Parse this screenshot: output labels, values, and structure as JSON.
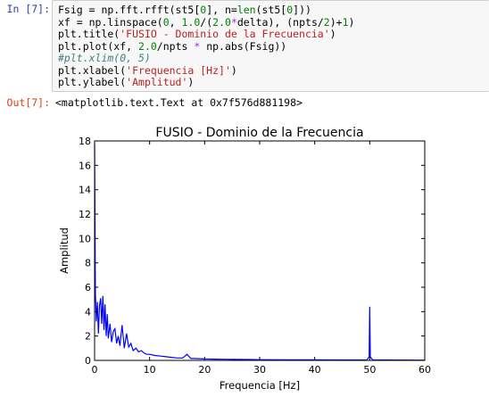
{
  "cell": {
    "in_prompt": "In [7]:",
    "out_prompt": "Out[7]:",
    "code_lines": [
      [
        {
          "t": "Fsig = np.fft.rfft(st5[",
          "c": ""
        },
        {
          "t": "0",
          "c": "nu"
        },
        {
          "t": "], n=",
          "c": ""
        },
        {
          "t": "len",
          "c": "kw"
        },
        {
          "t": "(st5[",
          "c": ""
        },
        {
          "t": "0",
          "c": "nu"
        },
        {
          "t": "]))",
          "c": ""
        }
      ],
      [
        {
          "t": "xf = np.linspace(",
          "c": ""
        },
        {
          "t": "0",
          "c": "nu"
        },
        {
          "t": ", ",
          "c": ""
        },
        {
          "t": "1.0",
          "c": "nu"
        },
        {
          "t": "/(",
          "c": ""
        },
        {
          "t": "2.0",
          "c": "nu"
        },
        {
          "t": "*",
          "c": "op"
        },
        {
          "t": "delta), (npts/",
          "c": ""
        },
        {
          "t": "2",
          "c": "nu"
        },
        {
          "t": ")+",
          "c": ""
        },
        {
          "t": "1",
          "c": "nu"
        },
        {
          "t": ")",
          "c": ""
        }
      ],
      [
        {
          "t": "plt.title(",
          "c": ""
        },
        {
          "t": "'FUSIO - Dominio de la Frecuencia'",
          "c": "st"
        },
        {
          "t": ")",
          "c": ""
        }
      ],
      [
        {
          "t": "plt.plot(xf, ",
          "c": ""
        },
        {
          "t": "2.0",
          "c": "nu"
        },
        {
          "t": "/npts ",
          "c": ""
        },
        {
          "t": "*",
          "c": "op"
        },
        {
          "t": " np.abs(Fsig))",
          "c": ""
        }
      ],
      [
        {
          "t": "#plt.xlim(0, 5)",
          "c": "cm"
        }
      ],
      [
        {
          "t": "plt.xlabel(",
          "c": ""
        },
        {
          "t": "'Frequencia [Hz]'",
          "c": "st"
        },
        {
          "t": ")",
          "c": ""
        }
      ],
      [
        {
          "t": "plt.ylabel(",
          "c": ""
        },
        {
          "t": "'Amplitud'",
          "c": "st"
        },
        {
          "t": ")",
          "c": ""
        }
      ]
    ],
    "output_text": "<matplotlib.text.Text at 0x7f576d881198>"
  },
  "chart_data": {
    "type": "line",
    "title": "FUSIO - Dominio de la Frecuencia",
    "xlabel": "Frequencia [Hz]",
    "ylabel": "Amplitud",
    "xlim": [
      0,
      60
    ],
    "ylim": [
      0,
      18
    ],
    "xticks": [
      0,
      10,
      20,
      30,
      40,
      50,
      60
    ],
    "yticks": [
      0,
      2,
      4,
      6,
      8,
      10,
      12,
      14,
      16,
      18
    ],
    "grid": false,
    "line_color": "#0000ff",
    "series": [
      {
        "x": [
          0,
          0.15,
          0.3,
          0.5,
          0.7,
          0.9,
          1.1,
          1.3,
          1.5,
          1.7,
          1.9,
          2.1,
          2.3,
          2.5,
          2.8,
          3.1,
          3.4,
          3.7,
          4.0,
          4.3,
          4.6,
          5.0,
          5.4,
          5.8,
          6.2,
          6.6,
          7.0,
          7.5,
          8.0,
          8.5,
          9.0,
          9.5,
          10,
          11,
          12,
          13,
          14,
          15,
          16,
          16.8,
          17.5,
          18,
          20,
          22,
          25,
          28,
          30,
          35,
          40,
          45,
          49.5,
          49.9,
          50.0,
          50.1,
          50.5,
          55,
          60
        ],
        "y": [
          17.8,
          5.5,
          3.2,
          4.8,
          2.2,
          4.5,
          5.1,
          3.0,
          5.3,
          2.5,
          4.6,
          2.0,
          3.8,
          1.8,
          3.0,
          1.5,
          2.4,
          2.6,
          1.4,
          2.0,
          1.2,
          2.9,
          1.0,
          2.2,
          1.1,
          1.4,
          0.8,
          1.0,
          0.7,
          0.8,
          0.6,
          0.5,
          0.5,
          0.4,
          0.35,
          0.3,
          0.25,
          0.2,
          0.2,
          0.5,
          0.15,
          0.15,
          0.12,
          0.1,
          0.08,
          0.07,
          0.06,
          0.05,
          0.05,
          0.04,
          0.05,
          0.3,
          4.4,
          0.3,
          0.05,
          0.03,
          0.02
        ]
      }
    ]
  }
}
